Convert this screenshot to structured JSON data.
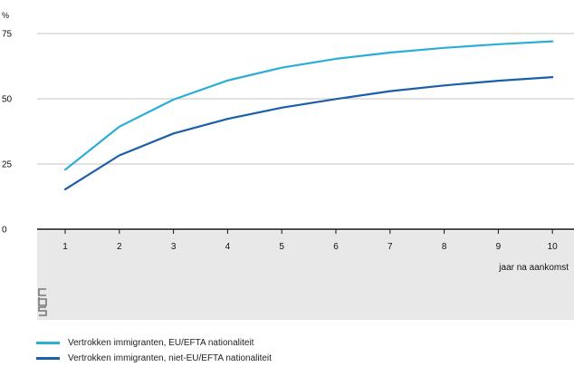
{
  "chart_data": {
    "type": "line",
    "ylabel": "%",
    "xlabel": "jaar na aankomst",
    "x": [
      1,
      2,
      3,
      4,
      5,
      6,
      7,
      8,
      9,
      10
    ],
    "y_ticks": [
      0,
      25,
      50,
      75
    ],
    "ylim": [
      0,
      75
    ],
    "grid": true,
    "legend_position": "bottom-left",
    "series": [
      {
        "name": "Vertrokken immigranten, EU/EFTA nationaliteit",
        "color": "#2aaed8",
        "values": [
          22.8,
          39.3,
          49.7,
          57.0,
          61.9,
          65.3,
          67.7,
          69.5,
          70.9,
          72.0
        ]
      },
      {
        "name": "Vertrokken immigranten, niet-EU/EFTA nationaliteit",
        "color": "#1a5fa8",
        "values": [
          15.3,
          28.3,
          36.7,
          42.3,
          46.6,
          49.9,
          52.9,
          55.1,
          56.9,
          58.3
        ]
      }
    ]
  },
  "logo": {
    "icon": "cbs-logo-icon",
    "text": "cbs"
  },
  "colors": {
    "panel": "#e8e8e8",
    "grid": "#b0b0b0",
    "axis": "#111111"
  }
}
